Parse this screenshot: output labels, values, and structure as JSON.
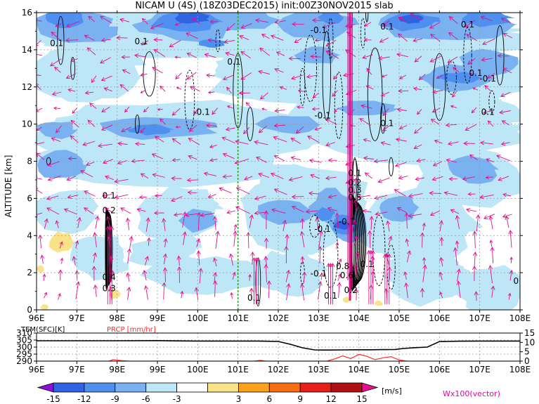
{
  "title": "NICAM U (4S) (18Z03DEC2015) init:00Z30NOV2015 slab",
  "chart_data": [
    {
      "type": "heatmap",
      "title": "NICAM U (4S) (18Z03DEC2015) init:00Z30NOV2015 slab",
      "ylabel": "ALTITUDE [km]",
      "xlim": [
        96,
        108
      ],
      "ylim": [
        0,
        16
      ],
      "x_ticks": [
        "96E",
        "97E",
        "98E",
        "99E",
        "100E",
        "101E",
        "102E",
        "103E",
        "104E",
        "105E",
        "106E",
        "107E",
        "108E"
      ],
      "y_ticks": [
        0,
        2,
        4,
        6,
        8,
        10,
        12,
        14,
        16
      ],
      "grid": true,
      "contour_labels": [
        {
          "x": 96.5,
          "y": 14.2,
          "text": "0.1"
        },
        {
          "x": 98.6,
          "y": 14.3,
          "text": "0.1"
        },
        {
          "x": 100.9,
          "y": 13.2,
          "text": "0.1"
        },
        {
          "x": 100.1,
          "y": 10.5,
          "text": "-0.1"
        },
        {
          "x": 103.0,
          "y": 14.9,
          "text": "-0.1"
        },
        {
          "x": 103.5,
          "y": 16.2,
          "text": "-0.1"
        },
        {
          "x": 104.7,
          "y": 15.1,
          "text": "0.1"
        },
        {
          "x": 106.7,
          "y": 15.2,
          "text": "0.1"
        },
        {
          "x": 107.2,
          "y": 12.3,
          "text": "-0.1"
        },
        {
          "x": 106.9,
          "y": 12.6,
          "text": "0.1"
        },
        {
          "x": 103.1,
          "y": 10.3,
          "text": "-0.1"
        },
        {
          "x": 104.7,
          "y": 9.9,
          "text": "0.1"
        },
        {
          "x": 107.2,
          "y": 10.5,
          "text": "0.1"
        },
        {
          "x": 97.8,
          "y": 6.0,
          "text": "0.1"
        },
        {
          "x": 97.8,
          "y": 5.2,
          "text": "0.2"
        },
        {
          "x": 97.8,
          "y": 1.6,
          "text": "0.4"
        },
        {
          "x": 97.8,
          "y": 1.0,
          "text": "0.3"
        },
        {
          "x": 103.9,
          "y": 7.2,
          "text": "0.1"
        },
        {
          "x": 103.9,
          "y": 6.7,
          "text": "0.2"
        },
        {
          "x": 103.9,
          "y": 6.3,
          "text": "0.3"
        },
        {
          "x": 103.9,
          "y": 5.9,
          "text": "0.5"
        },
        {
          "x": 103.7,
          "y": 4.6,
          "text": "-0.1"
        },
        {
          "x": 103.1,
          "y": 4.2,
          "text": "-0.1"
        },
        {
          "x": 103.6,
          "y": 2.2,
          "text": "0.8"
        },
        {
          "x": 103.7,
          "y": 1.7,
          "text": "0.6"
        },
        {
          "x": 104.2,
          "y": 2.3,
          "text": "0.1"
        },
        {
          "x": 103.0,
          "y": 1.8,
          "text": "-0.1"
        },
        {
          "x": 103.8,
          "y": 0.9,
          "text": "0.2"
        },
        {
          "x": 101.4,
          "y": 0.5,
          "text": "0.1"
        },
        {
          "x": 103.3,
          "y": 0.6,
          "text": "0.1"
        },
        {
          "x": 107.9,
          "y": 1.4,
          "text": "0"
        }
      ]
    },
    {
      "type": "line",
      "xlim": [
        96,
        108
      ],
      "left_label": "TEM(SFC)[K]",
      "right_label": "PRCP [mm/hr]",
      "left_ticks": [
        290,
        295,
        300,
        305,
        310
      ],
      "right_ticks": [
        0,
        5,
        10,
        15
      ],
      "series": [
        {
          "name": "TEM(SFC)[K]",
          "color": "#000000",
          "x": [
            96.0,
            97.0,
            98.0,
            99.0,
            99.5,
            100.0,
            100.5,
            101.0,
            101.5,
            102.0,
            102.3,
            102.6,
            102.9,
            103.1,
            103.3,
            103.6,
            104.0,
            104.3,
            104.6,
            104.9,
            105.1,
            105.4,
            105.7,
            106.0,
            106.5,
            107.0,
            107.5,
            108.0
          ],
          "y": [
            304.5,
            304.5,
            304.5,
            304.6,
            304.4,
            304.3,
            304.3,
            304.3,
            304.3,
            304.0,
            302.0,
            299.5,
            298.0,
            297.9,
            297.9,
            298.0,
            298.1,
            298.1,
            298.2,
            298.3,
            299.0,
            299.6,
            300.0,
            303.9,
            304.2,
            304.3,
            304.3,
            304.3
          ]
        },
        {
          "name": "PRCP [mm/hr]",
          "color": "#ff2a2a",
          "x": [
            96.0,
            97.8,
            97.9,
            98.1,
            98.3,
            101.4,
            101.55,
            101.7,
            103.2,
            103.4,
            103.6,
            103.8,
            104.0,
            104.2,
            104.4,
            104.6,
            104.8,
            105.0,
            105.2,
            108.0
          ],
          "y": [
            0,
            0,
            0.8,
            0.3,
            0,
            0,
            0.4,
            0,
            0,
            1.2,
            2.8,
            1.4,
            3.6,
            2.6,
            0.8,
            1.8,
            2.4,
            0.6,
            0,
            0
          ]
        }
      ]
    },
    {
      "type": "colorbar",
      "ticks": [
        "-15",
        "-12",
        "-9",
        "-6",
        "-3",
        "3",
        "6",
        "9",
        "12",
        "15"
      ],
      "colors": [
        "#8d0ed8",
        "#2f63e4",
        "#4f8ff0",
        "#7ab2f1",
        "#bde6f7",
        "#ffffff",
        "#f9e288",
        "#fba11c",
        "#f46d13",
        "#e71f1a",
        "#b00f14",
        "#e40e8f"
      ],
      "unit": "[m/s]",
      "vector_label": "Wx100(vector)"
    }
  ]
}
